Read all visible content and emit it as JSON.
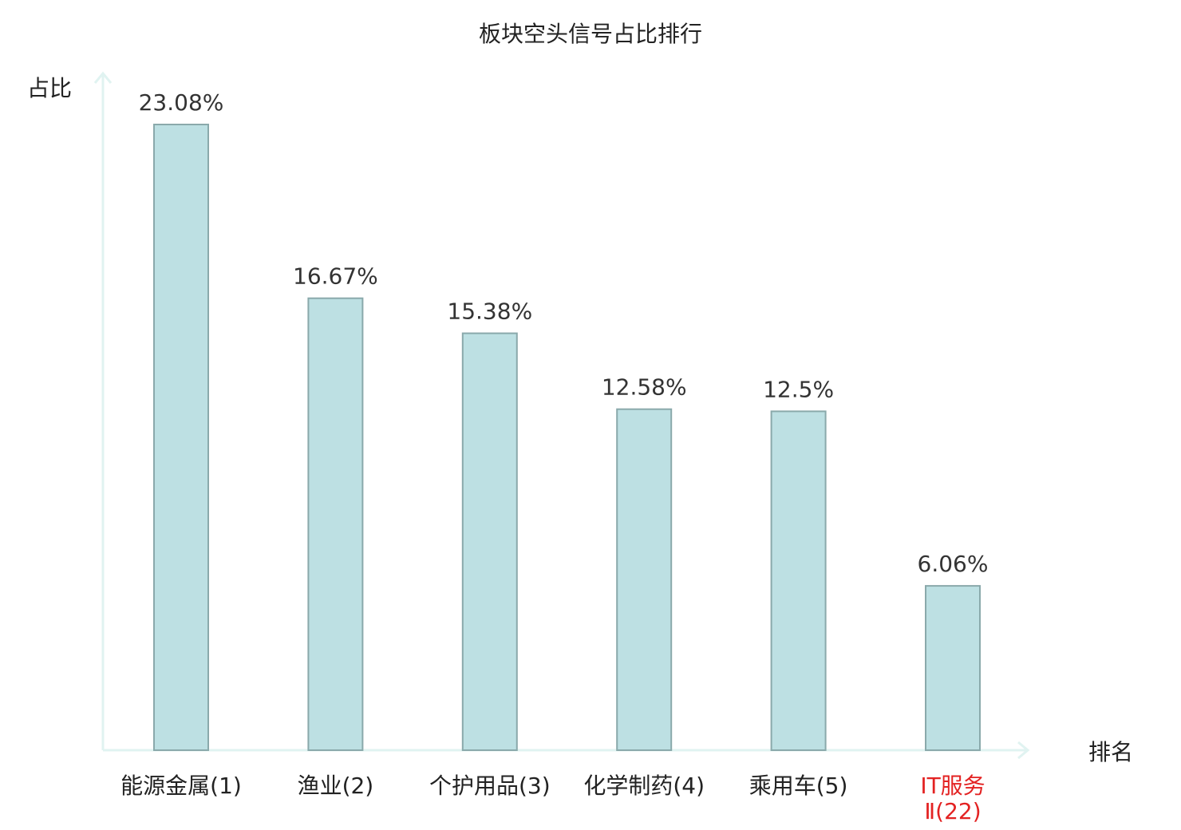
{
  "chart_data": {
    "type": "bar",
    "title": "板块空头信号占比排行",
    "xlabel": "排名",
    "ylabel": "占比",
    "categories": [
      [
        "能源金属(1)"
      ],
      [
        "渔业(2)"
      ],
      [
        "个护用品(3)"
      ],
      [
        "化学制药(4)"
      ],
      [
        "乘用车(5)"
      ],
      [
        "IT服务",
        "Ⅱ(22)"
      ]
    ],
    "values": [
      23.08,
      16.67,
      15.38,
      12.58,
      12.5,
      6.06
    ],
    "value_labels": [
      "23.08%",
      "16.67%",
      "15.38%",
      "12.58%",
      "12.5%",
      "6.06%"
    ],
    "highlight_index": 5,
    "ylim": [
      0,
      24
    ],
    "grid": false,
    "legend": "none"
  },
  "colors": {
    "bar_fill": "#bde0e3",
    "bar_stroke": "#8aa9ab",
    "axis": "#e0f3f1",
    "text": "#222222",
    "value_text": "#333333",
    "highlight_text": "#e32222"
  }
}
